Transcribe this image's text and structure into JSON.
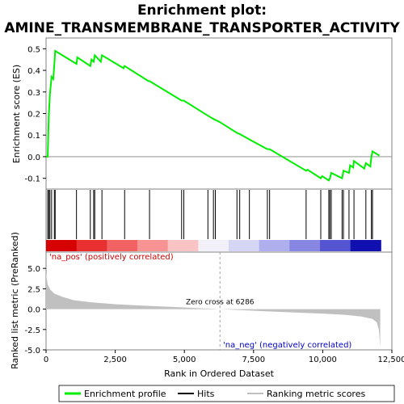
{
  "chart_data": {
    "type": "line",
    "title_line1": "Enrichment plot:",
    "title_line2": "AMINE_TRANSMEMBRANE_TRANSPORTER_ACTIVITY",
    "top_panel": {
      "ylabel": "Enrichment score (ES)",
      "ylim": [
        -0.15,
        0.55
      ],
      "yticks": [
        -0.1,
        0.0,
        0.1,
        0.2,
        0.3,
        0.4,
        0.5
      ],
      "ytick_labels": [
        "-0.1",
        "0.0",
        "0.1",
        "0.2",
        "0.3",
        "0.4",
        "0.5"
      ],
      "color": "#00ee00",
      "es_curve": [
        [
          0,
          0.0
        ],
        [
          60,
          0.0
        ],
        [
          80,
          0.1
        ],
        [
          100,
          0.19
        ],
        [
          140,
          0.29
        ],
        [
          200,
          0.37
        ],
        [
          260,
          0.36
        ],
        [
          300,
          0.43
        ],
        [
          330,
          0.49
        ],
        [
          1100,
          0.43
        ],
        [
          1130,
          0.46
        ],
        [
          1600,
          0.42
        ],
        [
          1640,
          0.45
        ],
        [
          1720,
          0.44
        ],
        [
          1760,
          0.47
        ],
        [
          1980,
          0.44
        ],
        [
          2020,
          0.47
        ],
        [
          2800,
          0.41
        ],
        [
          2840,
          0.42
        ],
        [
          3700,
          0.35
        ],
        [
          3740,
          0.35
        ],
        [
          4900,
          0.26
        ],
        [
          4980,
          0.26
        ],
        [
          5850,
          0.19
        ],
        [
          6050,
          0.175
        ],
        [
          6286,
          0.16
        ],
        [
          6900,
          0.11
        ],
        [
          7000,
          0.105
        ],
        [
          7350,
          0.08
        ],
        [
          8000,
          0.035
        ],
        [
          8080,
          0.035
        ],
        [
          9400,
          -0.065
        ],
        [
          9450,
          -0.06
        ],
        [
          9930,
          -0.1
        ],
        [
          9980,
          -0.09
        ],
        [
          10220,
          -0.11
        ],
        [
          10260,
          -0.1
        ],
        [
          10310,
          -0.075
        ],
        [
          10700,
          -0.1
        ],
        [
          10750,
          -0.065
        ],
        [
          10950,
          -0.075
        ],
        [
          10990,
          -0.04
        ],
        [
          11100,
          -0.05
        ],
        [
          11130,
          -0.02
        ],
        [
          11500,
          -0.055
        ],
        [
          11560,
          -0.03
        ],
        [
          11720,
          -0.045
        ],
        [
          11760,
          0.0
        ],
        [
          11800,
          0.025
        ],
        [
          12050,
          0.005
        ]
      ]
    },
    "hits_panel": {
      "hit_positions": [
        60,
        100,
        140,
        200,
        300,
        330,
        1100,
        1600,
        1720,
        1760,
        2020,
        2840,
        3740,
        4900,
        4980,
        5850,
        6050,
        6120,
        6900,
        7000,
        7350,
        8000,
        8080,
        9400,
        9930,
        10220,
        10260,
        10310,
        10700,
        10750,
        10950,
        11130,
        11560,
        11760,
        11800
      ],
      "gradient_colors": [
        "#d70000",
        "#e83030",
        "#f26262",
        "#f79393",
        "#fbc4c4",
        "#f2f0f8",
        "#d5d5f5",
        "#afafee",
        "#8787e3",
        "#5555d2",
        "#1010b0"
      ]
    },
    "bottom_panel": {
      "ylabel": "Ranked list metric (PreRanked)",
      "ylim": [
        -5.0,
        7.0
      ],
      "yticks": [
        -5.0,
        -2.5,
        0.0,
        2.5,
        5.0
      ],
      "ytick_labels": [
        "-5.0",
        "-2.5",
        "0.0",
        "2.5",
        "5.0"
      ],
      "metric_curve": [
        [
          0,
          4.5
        ],
        [
          20,
          3.8
        ],
        [
          60,
          3.0
        ],
        [
          150,
          2.4
        ],
        [
          300,
          1.9
        ],
        [
          600,
          1.5
        ],
        [
          1000,
          1.1
        ],
        [
          1600,
          0.85
        ],
        [
          2500,
          0.6
        ],
        [
          3500,
          0.42
        ],
        [
          4500,
          0.28
        ],
        [
          5500,
          0.12
        ],
        [
          6286,
          0.0
        ],
        [
          7000,
          -0.12
        ],
        [
          8000,
          -0.28
        ],
        [
          9000,
          -0.42
        ],
        [
          10000,
          -0.55
        ],
        [
          10800,
          -0.7
        ],
        [
          11400,
          -0.9
        ],
        [
          11800,
          -1.2
        ],
        [
          11950,
          -1.6
        ],
        [
          12030,
          -2.5
        ],
        [
          12080,
          -4.6
        ]
      ],
      "zero_cross_label": "Zero cross at 6286",
      "zero_cross_x": 6286,
      "pos_label": "'na_pos' (positively correlated)",
      "neg_label": "'na_neg' (negatively correlated)"
    },
    "xlabel": "Rank in Ordered Dataset",
    "xlim": [
      0,
      12500
    ],
    "data_xmax": 12100,
    "xticks": [
      0,
      2500,
      5000,
      7500,
      10000,
      12500
    ],
    "xtick_labels": [
      "0",
      "2,500",
      "5,000",
      "7,500",
      "10,000",
      "12,500"
    ],
    "legend": {
      "entries": [
        {
          "label": "Enrichment profile",
          "color": "#00ee00"
        },
        {
          "label": "Hits",
          "color": "#000000"
        },
        {
          "label": "Ranking metric scores",
          "color": "#c0c0c0"
        }
      ]
    }
  }
}
